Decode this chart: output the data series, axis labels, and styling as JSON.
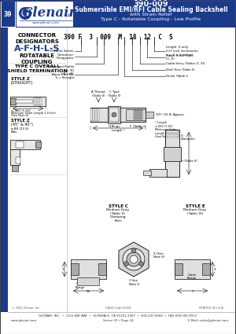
{
  "title_number": "390-009",
  "title_main": "Submersible EMI/RFI Cable Sealing Backshell",
  "title_sub1": "with Strain Relief",
  "title_sub2": "Type C - Rotatable Coupling - Low Profile",
  "header_bg": "#1a3a8c",
  "tab_text": "39",
  "designators": "A-F-H-L-S",
  "part_number": "390 F 3 009 M 18 12 C S",
  "footer1": "GLENAIR, INC.  •  1211 AIR WAY  •  GLENDALE, CA 91201-2497  •  818-247-6000  •  FAX 818-500-9912",
  "footer2": "www.glenair.com",
  "footer3": "Series 39 • Page 34",
  "footer4": "E-Mail: sales@glenair.com",
  "copyright": "© 2005 Glenair, Inc.",
  "printed": "PRINTED IN U.S.A.",
  "cage": "CAGE Code 06324",
  "bg": "#ffffff",
  "blue": "#1a3a8c",
  "ltgray": "#cccccc",
  "mdgray": "#aaaaaa",
  "dkgray": "#666666"
}
